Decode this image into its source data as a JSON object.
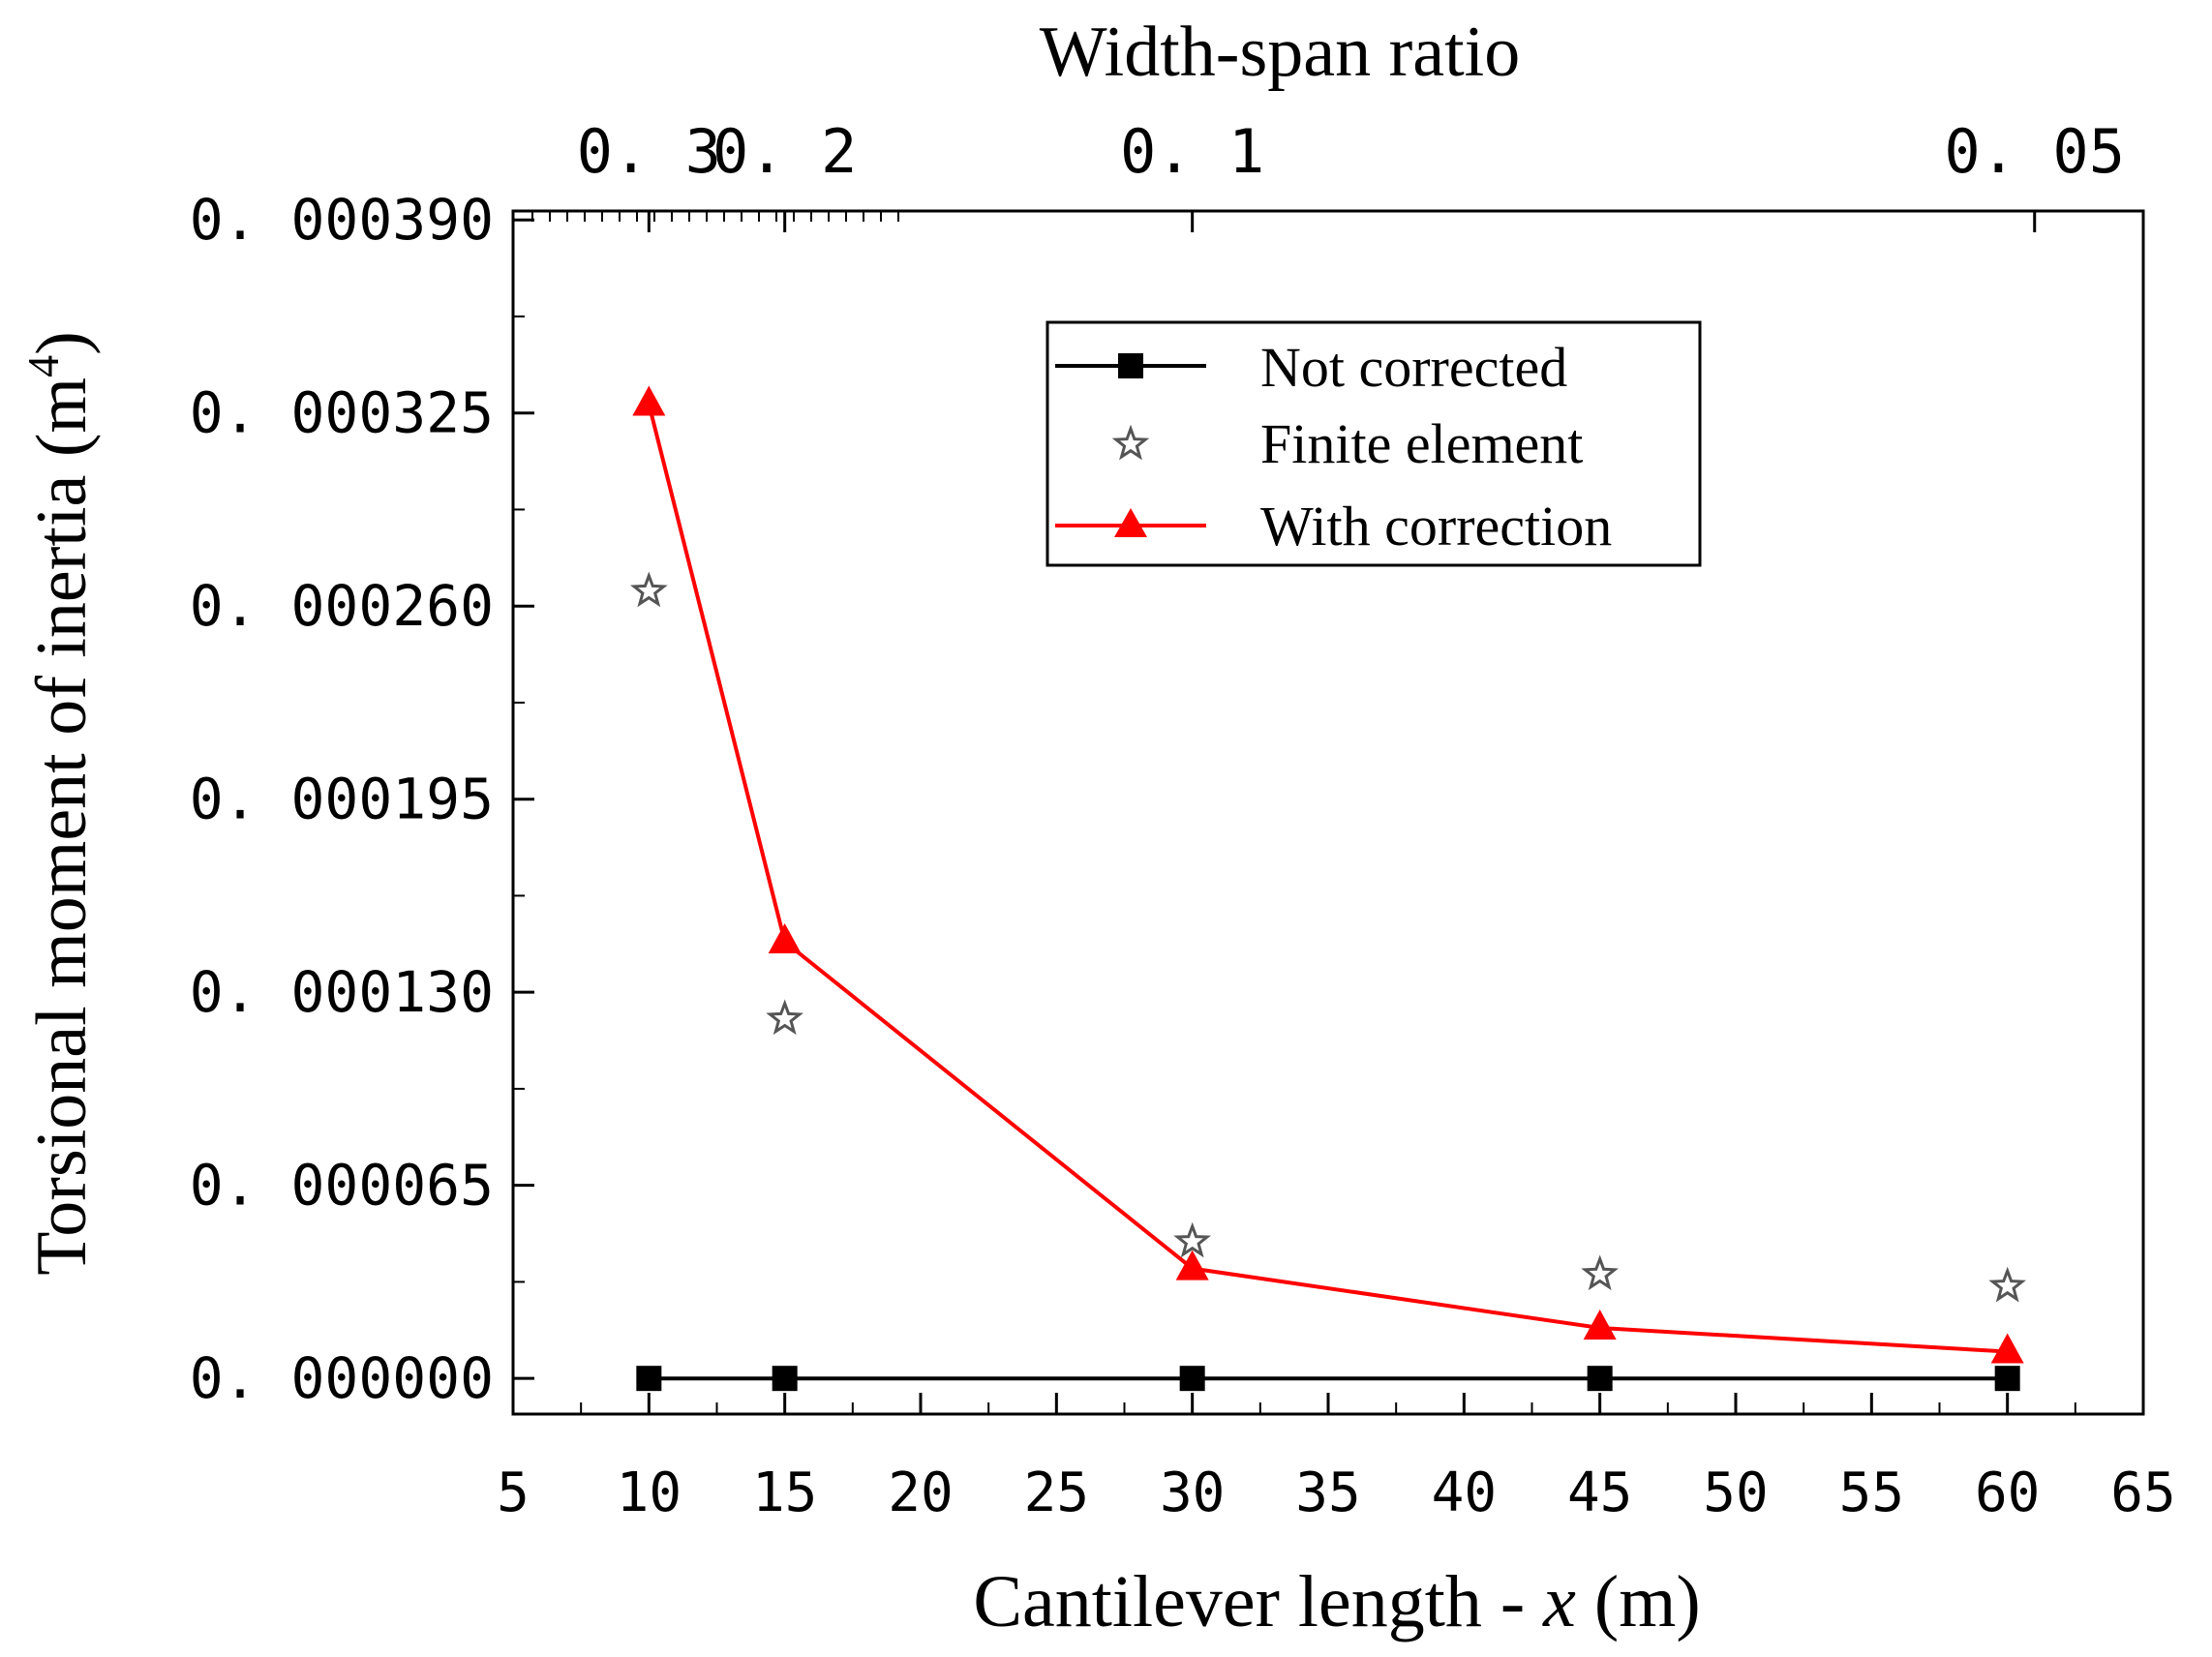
{
  "chart_data": {
    "type": "line",
    "top_axis_label": "Width-span ratio",
    "top_ticks": [
      {
        "x": 10,
        "label": "0. 3"
      },
      {
        "x": 15,
        "label": "0. 2"
      },
      {
        "x": 30,
        "label": "0. 1"
      },
      {
        "x": 61,
        "label": "0. 05"
      }
    ],
    "xlabel_prefix": "Cantilever length - ",
    "xlabel_var": "x",
    "xlabel_suffix": " (m)",
    "ylabel_main": "Torsional moment of inertia (m",
    "ylabel_sup": "4",
    "ylabel_close": ")",
    "xlim": [
      5,
      65
    ],
    "ylim": [
      -1.2e-05,
      0.000393
    ],
    "x_ticks": [
      5,
      10,
      15,
      20,
      25,
      30,
      35,
      40,
      45,
      50,
      55,
      60,
      65
    ],
    "y_ticks": [
      0,
      6.5e-05,
      0.00013,
      0.000195,
      0.00026,
      0.000325,
      0.00039
    ],
    "y_tick_labels": [
      "0. 000000",
      "0. 000065",
      "0. 000130",
      "0. 000195",
      "0. 000260",
      "0. 000325",
      "0. 000390"
    ],
    "legend_position": "top-right",
    "series": [
      {
        "name": "Not corrected",
        "style": "line-square",
        "color": "#000000",
        "x": [
          10,
          15,
          30,
          45,
          60
        ],
        "y": [
          0.0,
          0.0,
          0.0,
          0.0,
          0.0
        ]
      },
      {
        "name": "Finite element",
        "style": "star",
        "color": "#555555",
        "x": [
          10,
          15,
          30,
          45,
          60
        ],
        "y": [
          0.000265,
          0.000121,
          4.6e-05,
          3.5e-05,
          3.1e-05
        ]
      },
      {
        "name": "With correction",
        "style": "line-triangle",
        "color": "#ff0000",
        "x": [
          10,
          15,
          30,
          45,
          60
        ],
        "y": [
          0.000328,
          0.000147,
          3.7e-05,
          1.7e-05,
          9e-06
        ]
      }
    ]
  }
}
